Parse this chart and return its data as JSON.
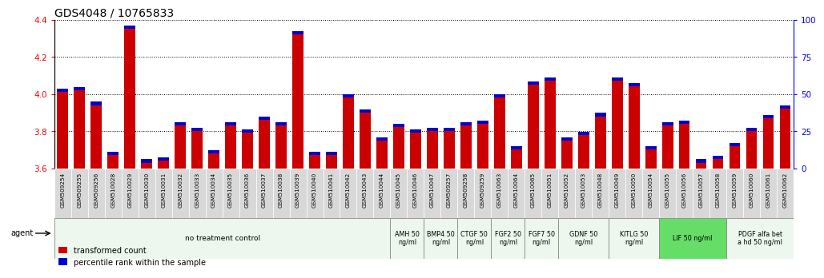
{
  "title": "GDS4048 / 10765833",
  "samples": [
    "GSM509254",
    "GSM509255",
    "GSM509256",
    "GSM510028",
    "GSM510029",
    "GSM510030",
    "GSM510031",
    "GSM510032",
    "GSM510033",
    "GSM510034",
    "GSM510035",
    "GSM510036",
    "GSM510037",
    "GSM510038",
    "GSM510039",
    "GSM510040",
    "GSM510041",
    "GSM510042",
    "GSM510043",
    "GSM510044",
    "GSM510045",
    "GSM510046",
    "GSM510047",
    "GSM509257",
    "GSM509258",
    "GSM509259",
    "GSM510063",
    "GSM510064",
    "GSM510065",
    "GSM510051",
    "GSM510052",
    "GSM510053",
    "GSM510048",
    "GSM510049",
    "GSM510050",
    "GSM510054",
    "GSM510055",
    "GSM510056",
    "GSM510057",
    "GSM510058",
    "GSM510059",
    "GSM510060",
    "GSM510061",
    "GSM510062"
  ],
  "red_values": [
    4.01,
    4.02,
    3.94,
    3.67,
    4.35,
    3.63,
    3.64,
    3.83,
    3.8,
    3.68,
    3.83,
    3.79,
    3.86,
    3.83,
    4.32,
    3.67,
    3.67,
    3.98,
    3.9,
    3.75,
    3.82,
    3.79,
    3.8,
    3.8,
    3.83,
    3.84,
    3.98,
    3.7,
    4.05,
    4.07,
    3.75,
    3.78,
    3.88,
    4.07,
    4.04,
    3.7,
    3.83,
    3.84,
    3.63,
    3.65,
    3.72,
    3.8,
    3.87,
    3.92
  ],
  "blue_heights": [
    0.018,
    0.018,
    0.018,
    0.018,
    0.018,
    0.018,
    0.018,
    0.018,
    0.018,
    0.018,
    0.018,
    0.018,
    0.018,
    0.018,
    0.018,
    0.018,
    0.018,
    0.018,
    0.018,
    0.018,
    0.018,
    0.018,
    0.018,
    0.018,
    0.018,
    0.018,
    0.018,
    0.018,
    0.018,
    0.018,
    0.018,
    0.018,
    0.018,
    0.018,
    0.018,
    0.018,
    0.018,
    0.018,
    0.018,
    0.018,
    0.018,
    0.018,
    0.018,
    0.018
  ],
  "agents": [
    {
      "label": "no treatment control",
      "start": 0,
      "end": 20,
      "color": "#edf7ed",
      "bright": false
    },
    {
      "label": "AMH 50\nng/ml",
      "start": 20,
      "end": 22,
      "color": "#edf7ed",
      "bright": false
    },
    {
      "label": "BMP4 50\nng/ml",
      "start": 22,
      "end": 24,
      "color": "#edf7ed",
      "bright": false
    },
    {
      "label": "CTGF 50\nng/ml",
      "start": 24,
      "end": 26,
      "color": "#edf7ed",
      "bright": false
    },
    {
      "label": "FGF2 50\nng/ml",
      "start": 26,
      "end": 28,
      "color": "#edf7ed",
      "bright": false
    },
    {
      "label": "FGF7 50\nng/ml",
      "start": 28,
      "end": 30,
      "color": "#edf7ed",
      "bright": false
    },
    {
      "label": "GDNF 50\nng/ml",
      "start": 30,
      "end": 33,
      "color": "#edf7ed",
      "bright": false
    },
    {
      "label": "KITLG 50\nng/ml",
      "start": 33,
      "end": 36,
      "color": "#edf7ed",
      "bright": false
    },
    {
      "label": "LIF 50 ng/ml",
      "start": 36,
      "end": 40,
      "color": "#66dd66",
      "bright": true
    },
    {
      "label": "PDGF alfa bet\na hd 50 ng/ml",
      "start": 40,
      "end": 44,
      "color": "#edf7ed",
      "bright": false
    }
  ],
  "ylim_left": [
    3.6,
    4.4
  ],
  "ylim_right": [
    0,
    100
  ],
  "yticks_left": [
    3.6,
    3.8,
    4.0,
    4.2,
    4.4
  ],
  "yticks_right": [
    0,
    25,
    50,
    75,
    100
  ],
  "bar_color": "#cc0000",
  "dot_color": "#0000cc",
  "baseline": 3.6,
  "bar_width": 0.65
}
